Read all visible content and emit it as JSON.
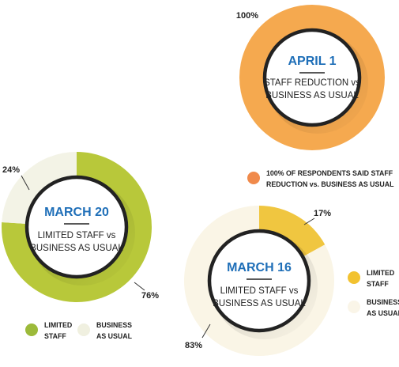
{
  "chart_data": [
    {
      "type": "pie",
      "title": "APRIL 1",
      "subtitle_lines": [
        "STAFF REDUCTION vs",
        "BUSINESS AS USUAL"
      ],
      "slices": [
        {
          "label": "100% OF RESPONDENTS SAID STAFF REDUCTION vs. BUSINESS AS USUAL",
          "value": 100,
          "display": "100%",
          "color": "#f5a94f"
        }
      ],
      "legend": [
        {
          "lines": [
            "100% OF RESPONDENTS SAID STAFF",
            "REDUCTION vs. BUSINESS AS USUAL"
          ],
          "color": "#f08a4b"
        }
      ],
      "legend_position": "bottom"
    },
    {
      "type": "pie",
      "title": "MARCH 20",
      "subtitle_lines": [
        "LIMITED STAFF vs",
        "BUSINESS AS USUAL"
      ],
      "slices": [
        {
          "label": "LIMITED STAFF",
          "value": 76,
          "display": "76%",
          "color": "#b8c83a"
        },
        {
          "label": "BUSINESS AS USUAL",
          "value": 24,
          "display": "24%",
          "color": "#f3f3e6"
        }
      ],
      "legend": [
        {
          "lines": [
            "LIMITED",
            "STAFF"
          ],
          "color": "#9cba3a"
        },
        {
          "lines": [
            "BUSINESS",
            "AS USUAL"
          ],
          "color": "#f0f0e0"
        }
      ],
      "legend_position": "bottom"
    },
    {
      "type": "pie",
      "title": "MARCH 16",
      "subtitle_lines": [
        "LIMITED STAFF vs",
        "BUSINESS AS USUAL"
      ],
      "slices": [
        {
          "label": "LIMITED STAFF",
          "value": 17,
          "display": "17%",
          "color": "#f0c640"
        },
        {
          "label": "BUSINESS AS USUAL",
          "value": 83,
          "display": "83%",
          "color": "#faf5e6"
        }
      ],
      "legend": [
        {
          "lines": [
            "LIMITED",
            "STAFF"
          ],
          "color": "#f2c230"
        },
        {
          "lines": [
            "BUSINESS",
            "AS USUAL"
          ],
          "color": "#faf5e8"
        }
      ],
      "legend_position": "right"
    }
  ],
  "colors": {
    "ring_dark": "#222222",
    "title_blue": "#1f6fb8",
    "text": "#222222"
  }
}
